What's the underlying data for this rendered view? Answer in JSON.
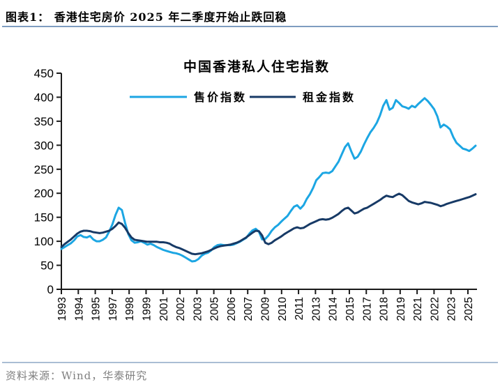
{
  "header": {
    "figure_label": "图表1：",
    "title": "香港住宅房价 2025 年二季度开始止跌回稳"
  },
  "footer": {
    "source": "资料来源：Wind，华泰研究"
  },
  "colors": {
    "price_line": "#1CA6E3",
    "rent_line": "#173A66",
    "header_rule": "#7E9CC0",
    "footer_rule": "#A9BDD4",
    "footer_text": "#7F7F7F",
    "axis": "#1A1A1A"
  },
  "chart_data": {
    "type": "line",
    "title": "中国香港私人住宅指数",
    "xlabel": "",
    "ylabel": "",
    "ylim": [
      0,
      450
    ],
    "y_ticks": [
      0,
      50,
      100,
      150,
      200,
      250,
      300,
      350,
      400,
      450
    ],
    "grid": false,
    "legend_position": "top",
    "x_frequency": "quarterly 1993Q1 - 2025Q3",
    "x_tick_labels": [
      "1993",
      "1994",
      "1995",
      "1997",
      "1998",
      "1999",
      "2001",
      "2002",
      "2003",
      "2005",
      "2006",
      "2007",
      "2009",
      "2010",
      "2011",
      "2013",
      "2014",
      "2015",
      "2017",
      "2018",
      "2019",
      "2021",
      "2022",
      "2023",
      "2025"
    ],
    "series": [
      {
        "name": "售价指数",
        "color": "#1CA6E3",
        "values": [
          84,
          88,
          92,
          96,
          102,
          110,
          113,
          109,
          108,
          111,
          104,
          100,
          100,
          103,
          108,
          120,
          135,
          155,
          170,
          165,
          138,
          115,
          102,
          97,
          98,
          100,
          97,
          93,
          95,
          92,
          88,
          85,
          82,
          80,
          78,
          76,
          75,
          73,
          70,
          66,
          62,
          58,
          59,
          63,
          70,
          74,
          76,
          81,
          88,
          92,
          93,
          92,
          92,
          92,
          93,
          96,
          99,
          103,
          107,
          116,
          123,
          126,
          120,
          104,
          105,
          112,
          122,
          129,
          134,
          141,
          147,
          153,
          163,
          172,
          175,
          168,
          175,
          188,
          198,
          211,
          227,
          234,
          242,
          243,
          242,
          246,
          256,
          266,
          281,
          296,
          304,
          287,
          272,
          276,
          287,
          302,
          315,
          327,
          336,
          347,
          362,
          382,
          394,
          374,
          378,
          394,
          388,
          381,
          379,
          376,
          382,
          379,
          386,
          392,
          398,
          392,
          384,
          375,
          360,
          337,
          343,
          339,
          333,
          317,
          305,
          299,
          293,
          291,
          288,
          293,
          299
        ]
      },
      {
        "name": "租金指数",
        "color": "#173A66",
        "values": [
          88,
          94,
          99,
          104,
          110,
          116,
          120,
          122,
          122,
          121,
          119,
          118,
          117,
          118,
          120,
          122,
          126,
          132,
          139,
          136,
          128,
          117,
          108,
          103,
          102,
          101,
          100,
          99,
          99,
          99,
          99,
          98,
          98,
          97,
          95,
          91,
          88,
          86,
          83,
          80,
          77,
          74,
          73,
          74,
          75,
          77,
          79,
          82,
          85,
          88,
          90,
          91,
          92,
          93,
          95,
          97,
          100,
          104,
          108,
          113,
          118,
          122,
          121,
          112,
          97,
          94,
          97,
          102,
          106,
          110,
          115,
          119,
          123,
          127,
          129,
          127,
          128,
          132,
          136,
          139,
          142,
          145,
          146,
          145,
          146,
          149,
          153,
          157,
          163,
          168,
          170,
          164,
          158,
          160,
          164,
          168,
          170,
          174,
          178,
          182,
          186,
          191,
          195,
          193,
          192,
          196,
          199,
          196,
          190,
          184,
          181,
          179,
          177,
          179,
          182,
          181,
          180,
          178,
          176,
          173,
          175,
          178,
          180,
          182,
          184,
          186,
          188,
          190,
          192,
          195,
          198
        ]
      }
    ]
  }
}
